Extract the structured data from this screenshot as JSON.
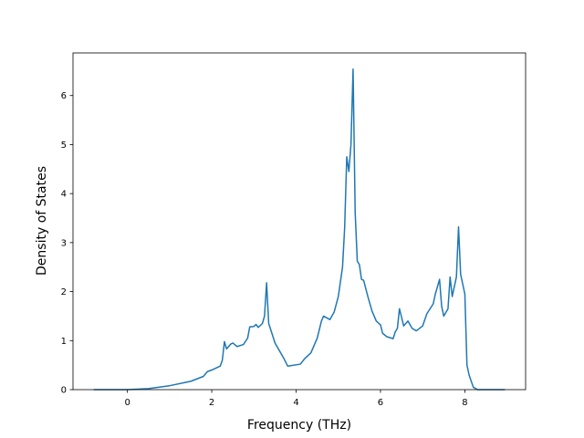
{
  "chart_data": {
    "type": "line",
    "xlabel": "Frequency (THz)",
    "ylabel": "Density of States",
    "x": [
      -0.8,
      0,
      0.5,
      1,
      1.5,
      1.8,
      1.9,
      2,
      2.2,
      2.25,
      2.3,
      2.35,
      2.45,
      2.5,
      2.6,
      2.75,
      2.85,
      2.9,
      3.0,
      3.05,
      3.1,
      3.2,
      3.25,
      3.3,
      3.35,
      3.5,
      3.7,
      3.8,
      4.1,
      4.2,
      4.35,
      4.5,
      4.6,
      4.65,
      4.8,
      4.9,
      5.0,
      5.1,
      5.15,
      5.2,
      5.25,
      5.3,
      5.35,
      5.4,
      5.45,
      5.5,
      5.55,
      5.6,
      5.7,
      5.8,
      5.9,
      6.0,
      6.05,
      6.15,
      6.3,
      6.35,
      6.4,
      6.45,
      6.55,
      6.65,
      6.75,
      6.85,
      7.0,
      7.1,
      7.25,
      7.3,
      7.4,
      7.45,
      7.5,
      7.6,
      7.65,
      7.7,
      7.8,
      7.85,
      7.9,
      8.0,
      8.05,
      8.1,
      8.2,
      8.3,
      8.95
    ],
    "series": [
      {
        "color": "#1f77b4",
        "values": [
          0,
          0,
          0.02,
          0.08,
          0.17,
          0.27,
          0.37,
          0.4,
          0.48,
          0.6,
          0.98,
          0.83,
          0.93,
          0.95,
          0.88,
          0.92,
          1.05,
          1.28,
          1.29,
          1.33,
          1.27,
          1.35,
          1.5,
          2.18,
          1.35,
          0.95,
          0.65,
          0.48,
          0.52,
          0.63,
          0.75,
          1.05,
          1.4,
          1.5,
          1.43,
          1.58,
          1.9,
          2.5,
          3.3,
          4.75,
          4.45,
          5.0,
          6.54,
          3.6,
          2.62,
          2.55,
          2.25,
          2.23,
          1.9,
          1.6,
          1.4,
          1.32,
          1.15,
          1.08,
          1.04,
          1.18,
          1.25,
          1.65,
          1.3,
          1.4,
          1.25,
          1.2,
          1.3,
          1.55,
          1.75,
          1.95,
          2.25,
          1.7,
          1.5,
          1.65,
          2.3,
          1.9,
          2.3,
          3.32,
          2.35,
          1.95,
          0.5,
          0.3,
          0.05,
          0,
          0
        ]
      }
    ],
    "xlim": [
      -1.29,
      9.44
    ],
    "ylim": [
      0,
      6.87
    ],
    "xticks": [
      0,
      2,
      4,
      6,
      8
    ],
    "yticks": [
      0,
      1,
      2,
      3,
      4,
      5,
      6
    ]
  }
}
